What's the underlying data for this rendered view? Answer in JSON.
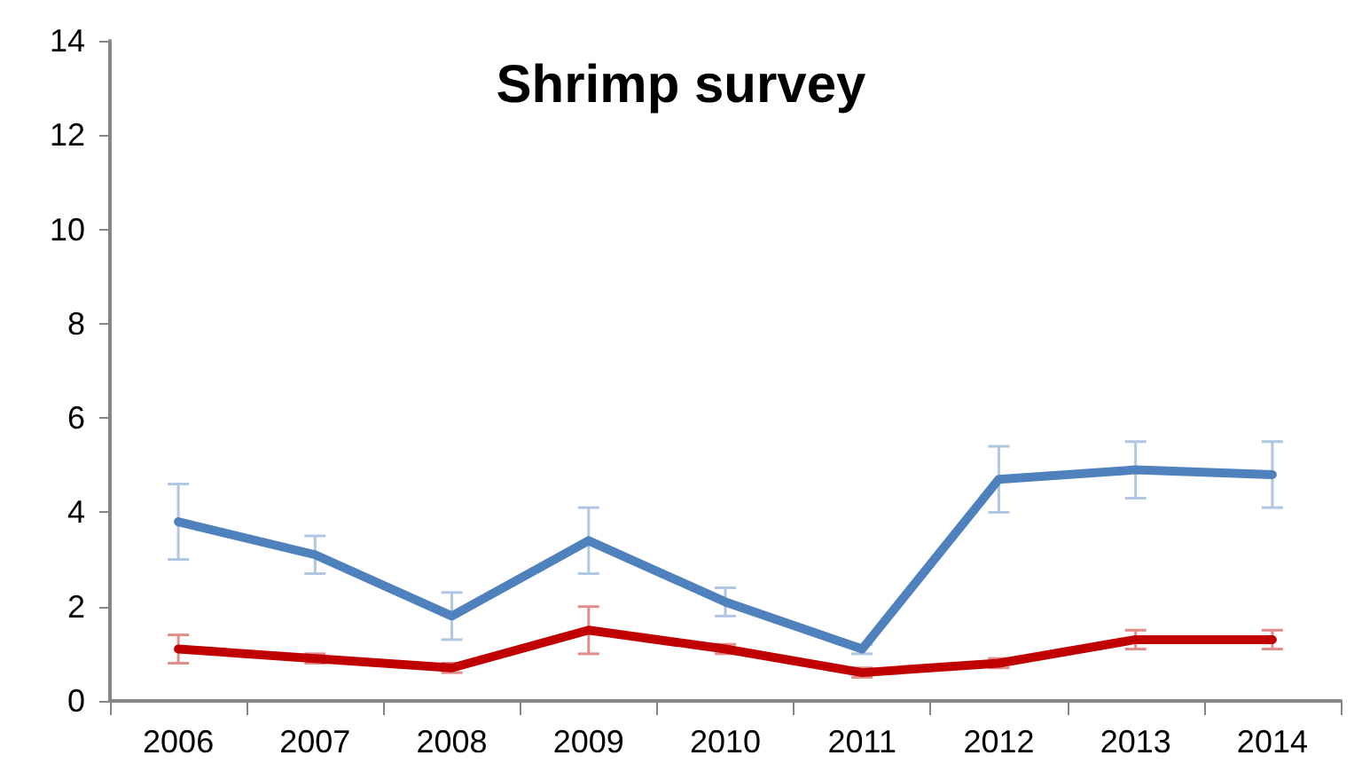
{
  "chart_data": {
    "type": "line",
    "title": "Shrimp survey",
    "categories": [
      "2006",
      "2007",
      "2008",
      "2009",
      "2010",
      "2011",
      "2012",
      "2013",
      "2014"
    ],
    "series": [
      {
        "color": "#4f81bd",
        "values": [
          3.8,
          3.1,
          1.8,
          3.4,
          2.1,
          1.1,
          4.7,
          4.9,
          4.8
        ],
        "errors": [
          0.8,
          0.4,
          0.5,
          0.7,
          0.3,
          0.1,
          0.7,
          0.6,
          0.7
        ]
      },
      {
        "color": "#c00000",
        "values": [
          1.1,
          0.9,
          0.7,
          1.5,
          1.1,
          0.6,
          0.8,
          1.3,
          1.3
        ],
        "errors": [
          0.3,
          0.1,
          0.1,
          0.5,
          0.1,
          0.1,
          0.1,
          0.2,
          0.2
        ]
      }
    ],
    "ylim": [
      0,
      14
    ],
    "yticks": [
      0,
      2,
      4,
      6,
      8,
      10,
      12,
      14
    ],
    "grid": false,
    "marker": "none",
    "line_style": "solid"
  }
}
